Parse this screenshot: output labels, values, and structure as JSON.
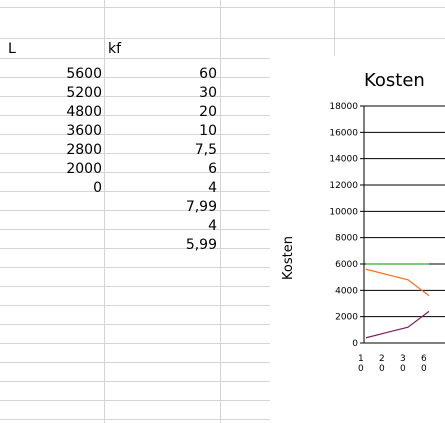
{
  "sheet": {
    "headers": {
      "col_a": "L",
      "col_b": "kf"
    },
    "col_a_values": [
      "5600",
      "5200",
      "4800",
      "3600",
      "2800",
      "2000",
      "0"
    ],
    "col_b_values": [
      "60",
      "30",
      "20",
      "10",
      "7,5",
      "6",
      "4",
      "7,99",
      "4",
      "5,99"
    ]
  },
  "chart_data": {
    "type": "line",
    "title": "Kosten",
    "ylabel": "Kosten",
    "ylim": [
      0,
      18000
    ],
    "y_ticks": [
      "0",
      "2000",
      "4000",
      "6000",
      "8000",
      "10000",
      "12000",
      "14000",
      "16000",
      "18000"
    ],
    "x_tick_labels": [
      [
        "1",
        "0"
      ],
      [
        "2",
        "0"
      ],
      [
        "3",
        "0"
      ],
      [
        "6",
        "0"
      ]
    ],
    "grid": true,
    "series": [
      {
        "color": "#33aa33",
        "x": [
          0,
          1,
          2,
          3
        ],
        "y": [
          6000,
          6000,
          6000,
          6000
        ]
      },
      {
        "color": "#ff6a1a",
        "x": [
          0,
          1,
          2,
          3
        ],
        "y": [
          5600,
          5200,
          4800,
          3600
        ]
      },
      {
        "color": "#7a1f5f",
        "x": [
          0,
          1,
          2,
          3
        ],
        "y": [
          400,
          800,
          1200,
          2400
        ]
      }
    ]
  }
}
